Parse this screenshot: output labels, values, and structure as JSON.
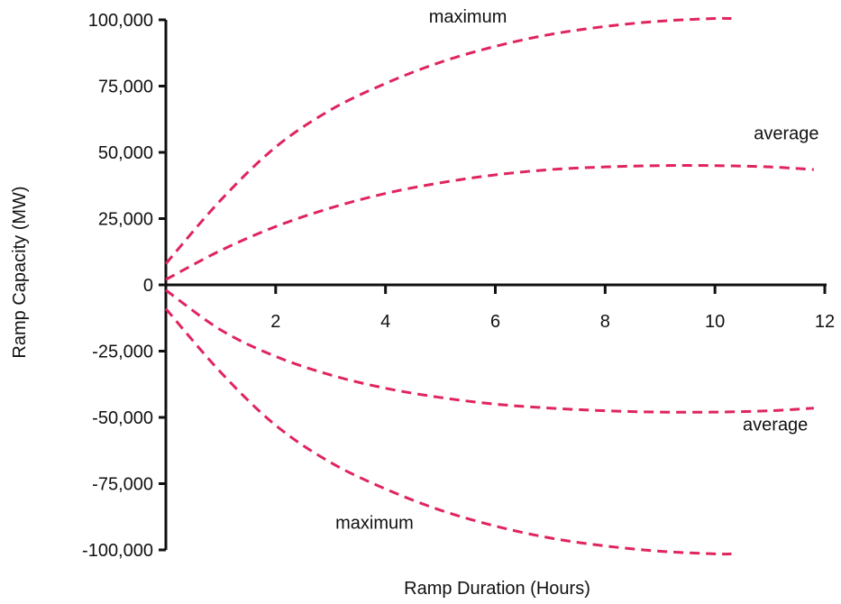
{
  "chart_data": {
    "type": "line",
    "title": "",
    "xlabel": "Ramp Duration (Hours)",
    "ylabel": "Ramp Capacity (MW)",
    "xlim": [
      0,
      12
    ],
    "ylim": [
      -100000,
      100000
    ],
    "x_ticks": [
      2,
      4,
      6,
      8,
      10,
      12
    ],
    "x_tick_labels": [
      "2",
      "4",
      "6",
      "8",
      "10",
      "12"
    ],
    "y_ticks": [
      100000,
      75000,
      50000,
      25000,
      0,
      -25000,
      -50000,
      -75000,
      -100000
    ],
    "y_tick_labels": [
      "100,000",
      "75,000",
      "50,000",
      "25,000",
      "0",
      "-25,000",
      "-50,000",
      "-75,000",
      "-100,000"
    ],
    "grid": false,
    "line_color": "#e0245e",
    "line_style": "dashed",
    "series": [
      {
        "x": [
          0,
          1,
          2,
          3,
          4,
          5,
          6,
          7,
          8,
          9,
          10,
          10.3
        ],
        "y": [
          8000,
          32000,
          52000,
          66000,
          76000,
          84000,
          90000,
          94500,
          97500,
          99500,
          100500,
          100500
        ]
      },
      {
        "x": [
          0,
          1,
          2,
          3,
          4,
          5,
          6,
          7,
          8,
          9,
          10,
          11,
          11.8
        ],
        "y": [
          2000,
          13000,
          22000,
          29000,
          34500,
          38500,
          41500,
          43500,
          44500,
          45000,
          45000,
          44500,
          43500
        ]
      },
      {
        "x": [
          0,
          1,
          2,
          3,
          4,
          5,
          6,
          7,
          8,
          9,
          10,
          11,
          11.8
        ],
        "y": [
          -2000,
          -17000,
          -27000,
          -34000,
          -39000,
          -42500,
          -45000,
          -46500,
          -47500,
          -48000,
          -48000,
          -47500,
          -46500
        ]
      },
      {
        "x": [
          0,
          1,
          2,
          3,
          4,
          5,
          6,
          7,
          8,
          9,
          10,
          10.3
        ],
        "y": [
          -9000,
          -33000,
          -53000,
          -67000,
          -77000,
          -85000,
          -91000,
          -95500,
          -98500,
          -100500,
          -101500,
          -101500
        ]
      }
    ],
    "annotations": [
      {
        "text": "maximum",
        "x": 5.5,
        "y": 99000
      },
      {
        "text": "average",
        "x": 11.3,
        "y": 55000
      },
      {
        "text": "average",
        "x": 11.1,
        "y": -55000
      },
      {
        "text": "maximum",
        "x": 3.8,
        "y": -92000
      }
    ]
  }
}
